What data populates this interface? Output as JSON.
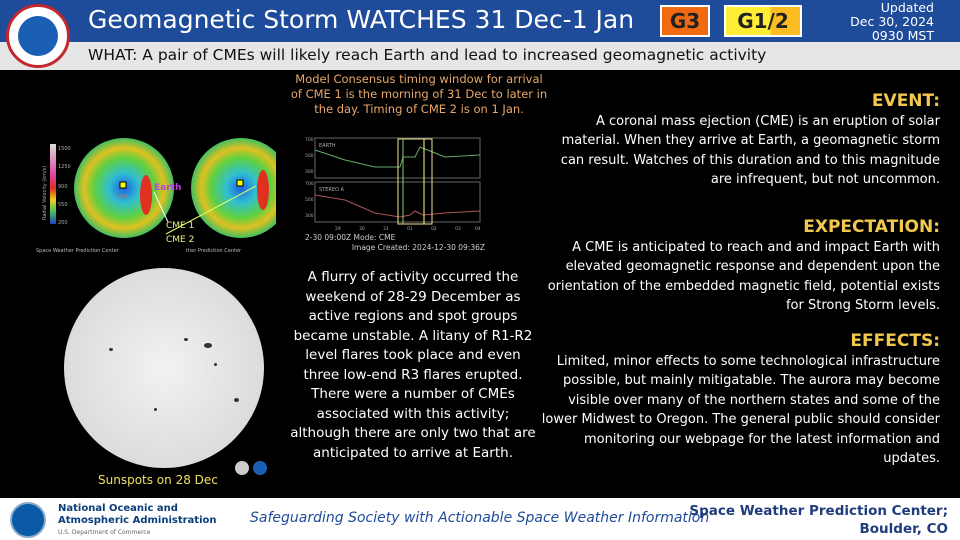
{
  "header": {
    "title": "Geomagnetic Storm WATCHES 31 Dec-1 Jan",
    "badges": [
      {
        "label": "G3",
        "color": "#f26a10"
      },
      {
        "label": "G1/2",
        "color": "#ffee33"
      }
    ],
    "updated": [
      "Updated",
      "Dec 30, 2024",
      "0930 MST"
    ],
    "logo_text": "NATIONAL WEATHER SERVICE"
  },
  "what": "WHAT: A pair of CMEs will likely reach Earth and lead to increased geomagnetic activity",
  "model_text": "Model Consensus timing window for arrival of CME 1 is the morning of 31 Dec to later in the day. Timing of CME 2 is on 1 Jan.",
  "wsa": {
    "colorbar_ticks": [
      "1500",
      "1250",
      "900",
      "550",
      "200"
    ],
    "colorbar_label": "Radial Velocity (km/s)",
    "sun_label": "Sun",
    "earth_label": "Earth",
    "cme1": "CME 1",
    "cme2": "CME 2",
    "credit": "Space Weather Prediction Center",
    "credit2": "ther Prediction Center"
  },
  "plot": {
    "panels": [
      "EARTH",
      "STEREO A"
    ],
    "yticks": [
      "700",
      "500",
      "300"
    ],
    "xticks": [
      "29",
      "30",
      "31",
      "01",
      "02",
      "03",
      "04"
    ],
    "footer_left": "2-30 09:00Z  Mode: CME",
    "footer_right": "Image Created: 2024-12-30 09:36Z"
  },
  "sun_label": "Sunspots on 28 Dec",
  "flurry": "A flurry of activity occurred the weekend of 28-29 December as active regions and spot groups became unstable. A litany of R1-R2 level flares took place and even three low-end R3 flares erupted. There were a number of CMEs associated with this activity; although there are only two that are anticipated to arrive at Earth.",
  "event": {
    "heading": "EVENT:",
    "text": "A coronal mass ejection (CME) is an eruption of solar material. When they arrive at Earth, a geomagnetic storm can result. Watches of this duration and to this magnitude are infrequent, but not uncommon."
  },
  "expectation": {
    "heading": "EXPECTATION:",
    "text": "A CME is anticipated to reach and and impact Earth with elevated geomagnetic response and dependent upon the orientation of the embedded magnetic field, potential exists for Strong Storm levels."
  },
  "effects": {
    "heading": "EFFECTS:",
    "text": "Limited, minor effects to some technological infrastructure possible, but mainly mitigatable. The aurora may become visible over many of the northern states and some of the lower Midwest to Oregon. The general public should consider monitoring our webpage for the latest information and updates."
  },
  "footer": {
    "noaa_line1": "National Oceanic and",
    "noaa_line2": "Atmospheric Administration",
    "noaa_line3": "U.S. Department of Commerce",
    "slogan": "Safeguarding Society with Actionable Space Weather Information",
    "swpc1": "Space Weather Prediction Center;",
    "swpc2": "Boulder, CO"
  }
}
